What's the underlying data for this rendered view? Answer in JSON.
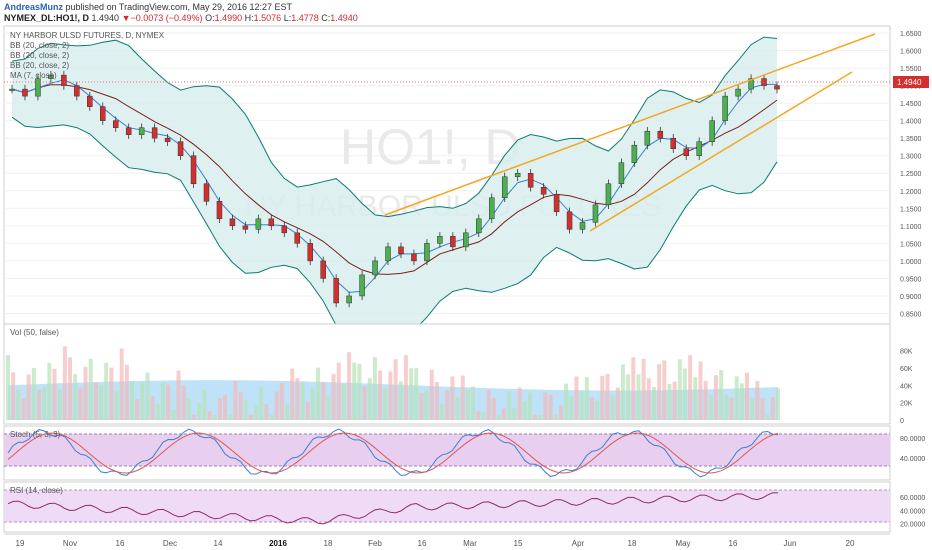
{
  "header": {
    "author": "AndreasMunz",
    "published": "published on TradingView.com, May 29, 2016 12:27 EST",
    "symbol_line": "NYMEX_DL:HO1!, D",
    "last": "1.4940",
    "change_arrow": "▼",
    "change": "−0.0073 (−0.49%)",
    "ohlc": {
      "o_label": "O:",
      "o": "1.4990",
      "h_label": "H:",
      "h": "1.5076",
      "l_label": "L:",
      "l": "1.4778",
      "c_label": "C:",
      "c": "1.4940"
    }
  },
  "main_pane": {
    "title": "NY HARBOR ULSD FUTURES, D, NYMEX",
    "indicators": [
      "BB (20, close, 2)",
      "BB (20, close, 2)",
      "BB (20, close, 2)",
      "MA (7, close)"
    ],
    "watermark_symbol": "HO1!, D",
    "watermark_name": "NY HARBOR ULSD FUTURES",
    "price_label": "1.4940",
    "y_ticks": [
      "1.6500",
      "1.6000",
      "1.5500",
      "1.5000",
      "1.4500",
      "1.4000",
      "1.3500",
      "1.3000",
      "1.2500",
      "1.2000",
      "1.1500",
      "1.1000",
      "1.0500",
      "1.0000",
      "0.9500",
      "0.9000",
      "0.8500"
    ]
  },
  "vol_pane": {
    "title": "Vol (50, false)",
    "y_ticks": [
      "80K",
      "60K",
      "40K",
      "20K",
      "0"
    ]
  },
  "stoch_pane": {
    "title": "Stoch (5, 3, 3)",
    "y_ticks": [
      "80.0000",
      "40.0000"
    ]
  },
  "rsi_pane": {
    "title": "RSI (14, close)",
    "y_ticks": [
      "60.0000",
      "40.0000",
      "20.0000"
    ]
  },
  "x_axis": [
    "19",
    "Nov",
    "16",
    "Dec",
    "14",
    "2016",
    "18",
    "Feb",
    "16",
    "Mar",
    "15",
    "Apr",
    "18",
    "May",
    "16",
    "Jun",
    "20"
  ],
  "colors": {
    "up": "#4caf50",
    "down": "#d32f2f",
    "band": "#0b7a73",
    "band_fill": "#d6eeec",
    "trend": "#f5a623",
    "ma": "#7b1f1f",
    "mb": "#3d7fcf",
    "stoch_bg": "#e8cff0",
    "rsi_bg": "#efdbf5",
    "vol_ma": "#a9d8f5"
  },
  "chart_data": {
    "type": "candlestick",
    "title": "NY HARBOR ULSD FUTURES, D, NYMEX",
    "x_labels": [
      "19",
      "Nov",
      "16",
      "Dec",
      "14",
      "2016",
      "18",
      "Feb",
      "16",
      "Mar",
      "15",
      "Apr",
      "18",
      "May",
      "16",
      "Jun",
      "20"
    ],
    "close_approx": [
      1.49,
      1.47,
      1.52,
      1.53,
      1.5,
      1.47,
      1.44,
      1.4,
      1.38,
      1.36,
      1.38,
      1.35,
      1.34,
      1.3,
      1.22,
      1.17,
      1.12,
      1.1,
      1.09,
      1.12,
      1.1,
      1.08,
      1.05,
      1.0,
      0.95,
      0.88,
      0.9,
      0.96,
      1.0,
      1.04,
      1.02,
      1.0,
      1.05,
      1.07,
      1.04,
      1.08,
      1.12,
      1.18,
      1.24,
      1.25,
      1.21,
      1.19,
      1.14,
      1.09,
      1.11,
      1.16,
      1.22,
      1.28,
      1.33,
      1.37,
      1.35,
      1.32,
      1.3,
      1.34,
      1.4,
      1.47,
      1.49,
      1.52,
      1.5,
      1.49
    ],
    "y_range": [
      0.82,
      1.67
    ],
    "last_price": 1.494,
    "volume_max": "80K",
    "stoch_levels": [
      80,
      20
    ],
    "rsi_levels": [
      70,
      30
    ]
  }
}
